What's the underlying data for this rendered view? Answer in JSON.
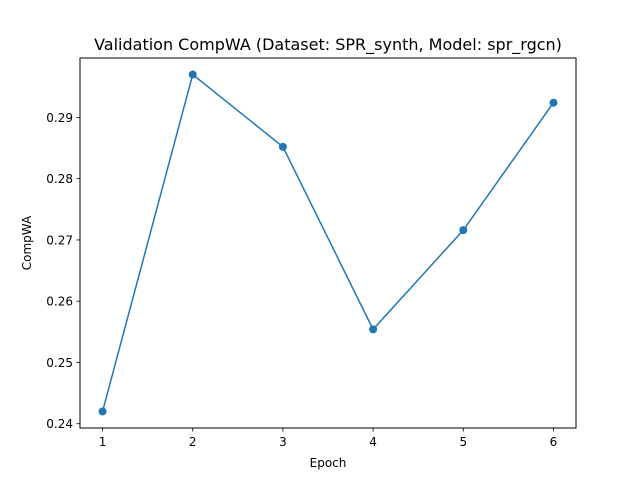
{
  "chart_data": {
    "type": "line",
    "title": "Validation CompWA (Dataset: SPR_synth, Model: spr_rgcn)",
    "xlabel": "Epoch",
    "ylabel": "CompWA",
    "x": [
      1,
      2,
      3,
      4,
      5,
      6
    ],
    "series": [
      {
        "values": [
          0.242,
          0.297,
          0.2852,
          0.2554,
          0.2716,
          0.2924
        ],
        "color": "#1f77b4"
      }
    ],
    "xlim": [
      0.75,
      6.25
    ],
    "ylim": [
      0.2393,
      0.2997
    ],
    "xticks": [
      1,
      2,
      3,
      4,
      5,
      6
    ],
    "xtick_labels": [
      "1",
      "2",
      "3",
      "4",
      "5",
      "6"
    ],
    "yticks": [
      0.24,
      0.25,
      0.26,
      0.27,
      0.28,
      0.29
    ],
    "ytick_labels": [
      "0.24",
      "0.25",
      "0.26",
      "0.27",
      "0.28",
      "0.29"
    ],
    "grid": false,
    "marker": "circle"
  }
}
